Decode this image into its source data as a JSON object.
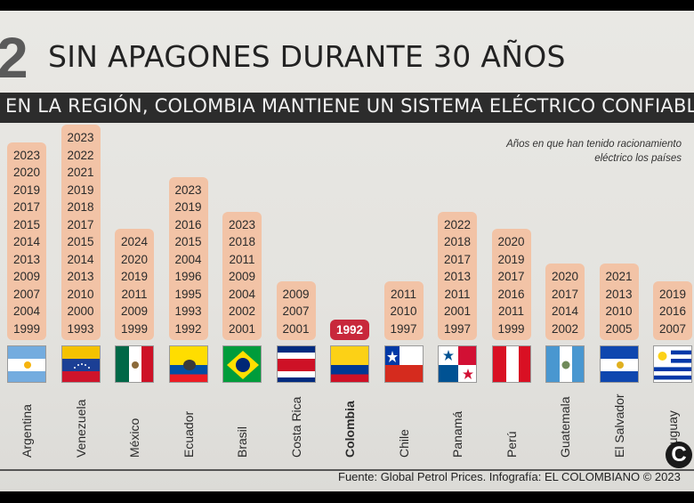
{
  "header": {
    "section_number": "2",
    "title": "SIN APAGONES DURANTE 30 AÑOS",
    "subtitle": "EN LA REGIÓN, COLOMBIA MANTIENE UN SISTEMA ELÉCTRICO CONFIABLE"
  },
  "note": "Años en que han tenido racionamiento eléctrico los países",
  "source": "Fuente: Global Petrol Prices. Infografía: EL COLOMBIANO © 2023",
  "logo": "C",
  "colors": {
    "tile": "#f2c3a6",
    "highlight": "#c8283b",
    "bar": "#2c2c2c"
  },
  "chart_data": {
    "type": "table",
    "title": "SIN APAGONES DURANTE 30 AÑOS",
    "countries": [
      {
        "name": "Argentina",
        "years": [
          "2023",
          "2020",
          "2019",
          "2017",
          "2015",
          "2014",
          "2013",
          "2009",
          "2007",
          "2004",
          "1999"
        ],
        "flag_icon": "argentina-flag-icon"
      },
      {
        "name": "Venezuela",
        "years": [
          "2023",
          "2022",
          "2021",
          "2019",
          "2018",
          "2017",
          "2015",
          "2014",
          "2013",
          "2010",
          "2000",
          "1993"
        ],
        "flag_icon": "venezuela-flag-icon"
      },
      {
        "name": "México",
        "years": [
          "2024",
          "2020",
          "2019",
          "2011",
          "2009",
          "1999"
        ],
        "flag_icon": "mexico-flag-icon"
      },
      {
        "name": "Ecuador",
        "years": [
          "2023",
          "2019",
          "2016",
          "2015",
          "2004",
          "1996",
          "1995",
          "1993",
          "1992"
        ],
        "flag_icon": "ecuador-flag-icon"
      },
      {
        "name": "Brasil",
        "years": [
          "2023",
          "2018",
          "2011",
          "2009",
          "2004",
          "2002",
          "2001"
        ],
        "flag_icon": "brazil-flag-icon"
      },
      {
        "name": "Costa Rica",
        "years": [
          "2009",
          "2007",
          "2001"
        ],
        "flag_icon": "costa-rica-flag-icon"
      },
      {
        "name": "Colombia",
        "years": [
          "1992"
        ],
        "highlight": true,
        "flag_icon": "colombia-flag-icon"
      },
      {
        "name": "Chile",
        "years": [
          "2011",
          "2010",
          "1997"
        ],
        "flag_icon": "chile-flag-icon"
      },
      {
        "name": "Panamá",
        "years": [
          "2022",
          "2018",
          "2017",
          "2013",
          "2011",
          "2001",
          "1997"
        ],
        "flag_icon": "panama-flag-icon"
      },
      {
        "name": "Perú",
        "years": [
          "2020",
          "2019",
          "2017",
          "2016",
          "2011",
          "1999"
        ],
        "flag_icon": "peru-flag-icon"
      },
      {
        "name": "Guatemala",
        "years": [
          "2020",
          "2017",
          "2014",
          "2002"
        ],
        "flag_icon": "guatemala-flag-icon"
      },
      {
        "name": "El Salvador",
        "years": [
          "2021",
          "2013",
          "2010",
          "2005"
        ],
        "flag_icon": "el-salvador-flag-icon"
      },
      {
        "name": "Uruguay",
        "years": [
          "2019",
          "2016",
          "2007"
        ],
        "flag_icon": "uruguay-flag-icon"
      }
    ]
  }
}
